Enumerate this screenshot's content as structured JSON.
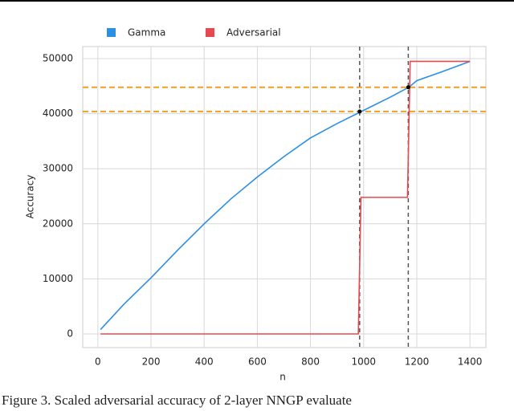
{
  "chart_data": {
    "type": "line",
    "x_label": "n",
    "y_label": "Accuracy",
    "caption": "Figure 3. Scaled adversarial accuracy of 2-layer NNGP evaluate",
    "xlim": [
      -57,
      1460
    ],
    "ylim": [
      -2480,
      52190
    ],
    "xticks": [
      0,
      200,
      400,
      600,
      800,
      1000,
      1200,
      1400
    ],
    "yticks": [
      0,
      10000,
      20000,
      30000,
      40000,
      50000
    ],
    "grid": true,
    "legend": "top-left",
    "series": [
      {
        "name": "Gamma",
        "color": "#2b8fe6",
        "x": [
          10,
          100,
          200,
          300,
          400,
          500,
          600,
          700,
          800,
          900,
          1000,
          1100,
          1170,
          1200,
          1300,
          1400
        ],
        "values": [
          800,
          5500,
          10200,
          15200,
          20000,
          24500,
          28500,
          32200,
          35600,
          38200,
          40600,
          43000,
          44800,
          46000,
          47700,
          49500
        ]
      },
      {
        "name": "Adversarial",
        "color": "#e8484f",
        "x": [
          10,
          980,
          990,
          1165,
          1175,
          1400
        ],
        "values": [
          0,
          0,
          24800,
          24800,
          49500,
          49500
        ]
      }
    ],
    "hlines": [
      {
        "value": 44800,
        "color": "#f0a020"
      },
      {
        "value": 40400,
        "color": "#f0a020"
      }
    ],
    "vlines": [
      {
        "value": 985,
        "color": "#555555"
      },
      {
        "value": 1168,
        "color": "#555555"
      }
    ],
    "points": {
      "x": [
        985,
        1168
      ],
      "values": [
        40400,
        44800
      ],
      "color": "#000000"
    }
  }
}
